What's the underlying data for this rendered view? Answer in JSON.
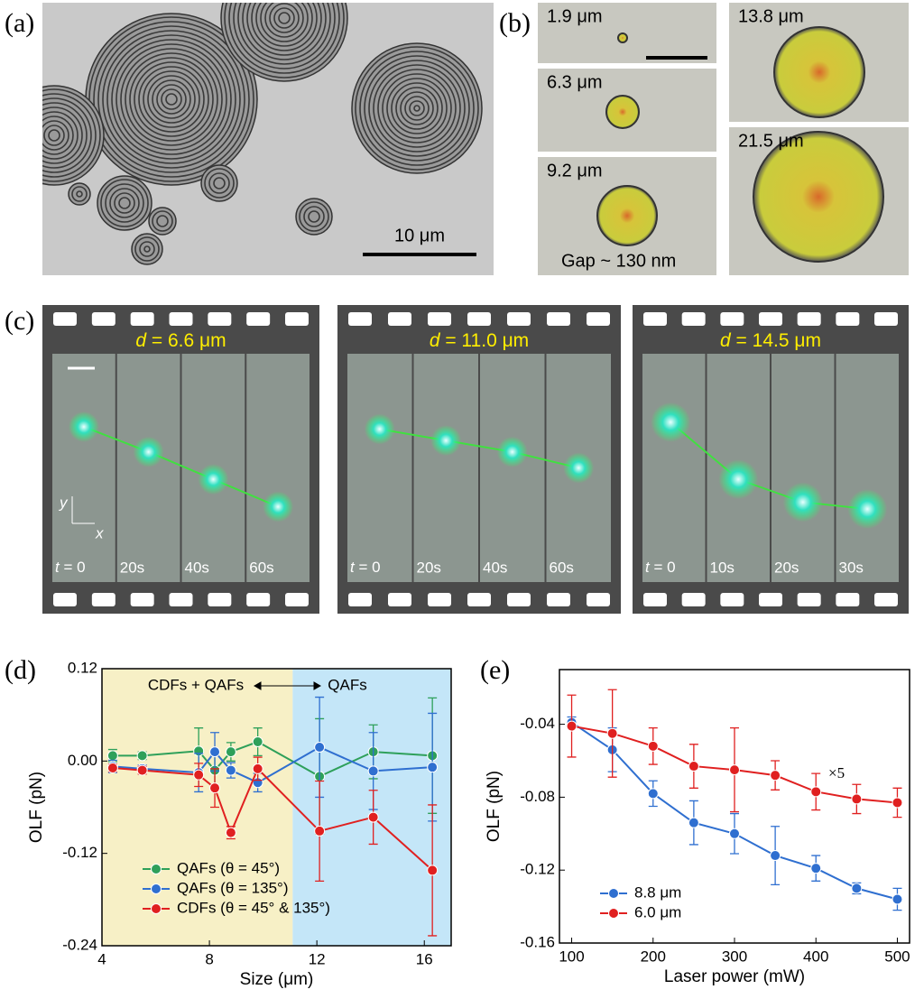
{
  "figure": {
    "panel_labels": [
      "(a)",
      "(b)",
      "(c)",
      "(d)",
      "(e)"
    ],
    "a_scale": "10 μm",
    "b_sizes": [
      "1.9 μm",
      "6.3 μm",
      "9.2 μm",
      "13.8 μm",
      "21.5 μm"
    ],
    "b_gap": "Gap ~ 130 nm",
    "time_var": "t",
    "axes": [
      "y",
      "x"
    ],
    "strips": [
      {
        "var": "d",
        "title": " = 6.6 μm",
        "times": [
          " = 0",
          "20s",
          "40s",
          "60s"
        ]
      },
      {
        "var": "d",
        "title": " = 11.0 μm",
        "times": [
          " = 0",
          "20s",
          "40s",
          "60s"
        ]
      },
      {
        "var": "d",
        "title": " = 14.5 μm",
        "times": [
          " = 0",
          "10s",
          "20s",
          "30s"
        ]
      }
    ]
  },
  "chart_data": [
    {
      "type": "line",
      "xlabel": "Size (μm)",
      "ylabel": "OLF (pN)",
      "xlim": [
        4,
        17
      ],
      "ylim": [
        -0.24,
        0.12
      ],
      "xticks": [
        4,
        8,
        12,
        16
      ],
      "yticks": [
        -0.24,
        -0.12,
        {
          "value": 0,
          "label": "0.00"
        },
        0.12
      ],
      "shaded_regions": [
        {
          "xrange": [
            4,
            11.1
          ],
          "color": "#f7f0c6"
        },
        {
          "xrange": [
            11.1,
            17
          ],
          "color": "#c4e6f8"
        }
      ],
      "annotations": [
        "CDFs + QAFs",
        "QAFs"
      ],
      "legend": "lower-left",
      "x": [
        4.4,
        5.5,
        7.6,
        8.2,
        8.8,
        9.8,
        12.1,
        14.1,
        16.3
      ],
      "series": [
        {
          "name": "QAFs (θ = 45°)",
          "color": "#2ea05a",
          "values": [
            0.007,
            0.007,
            0.013,
            -0.012,
            0.012,
            0.025,
            -0.02,
            0.012,
            0.007
          ],
          "errors": [
            0.008,
            0.005,
            0.03,
            0.02,
            0.012,
            0.018,
            0.075,
            0.035,
            0.075
          ]
        },
        {
          "name": "QAFs (θ = 135°)",
          "color": "#2f6fd0",
          "values": [
            -0.007,
            -0.01,
            -0.015,
            0.012,
            -0.012,
            -0.028,
            0.018,
            -0.013,
            -0.008
          ],
          "errors": [
            0.008,
            0.005,
            0.025,
            0.025,
            0.01,
            0.012,
            0.065,
            0.05,
            0.07
          ]
        },
        {
          "name": "CDFs (θ = 45° & 135°)",
          "color": "#e02020",
          "values": [
            -0.009,
            -0.012,
            -0.018,
            -0.035,
            -0.093,
            -0.01,
            -0.091,
            -0.073,
            -0.142
          ],
          "errors": [
            0.005,
            0.005,
            0.015,
            0.025,
            0.008,
            0.015,
            0.065,
            0.035,
            0.085
          ]
        }
      ]
    },
    {
      "type": "line",
      "xlabel": "Laser power (mW)",
      "ylabel": "OLF (pN)",
      "xlim": [
        85,
        515
      ],
      "ylim": [
        -0.16,
        -0.01
      ],
      "xticks": [
        100,
        200,
        300,
        400,
        500
      ],
      "yticks": [
        -0.16,
        -0.12,
        -0.08,
        -0.04
      ],
      "annotations": [
        "×5"
      ],
      "legend": "lower-left",
      "x": [
        100,
        150,
        200,
        250,
        300,
        350,
        400,
        450,
        500
      ],
      "series": [
        {
          "name": "8.8 μm",
          "color": "#2f6fd0",
          "values": [
            -0.039,
            -0.054,
            -0.078,
            -0.094,
            -0.1,
            -0.112,
            -0.119,
            -0.13,
            -0.136
          ],
          "errors": [
            0.003,
            0.012,
            0.007,
            0.012,
            0.011,
            0.016,
            0.007,
            0.003,
            0.006
          ]
        },
        {
          "name": "6.0 μm",
          "color": "#e02020",
          "values": [
            -0.041,
            -0.045,
            -0.052,
            -0.063,
            -0.065,
            -0.068,
            -0.077,
            -0.081,
            -0.083
          ],
          "errors": [
            0.017,
            0.024,
            0.01,
            0.012,
            0.023,
            0.008,
            0.01,
            0.008,
            0.008
          ]
        }
      ]
    }
  ]
}
